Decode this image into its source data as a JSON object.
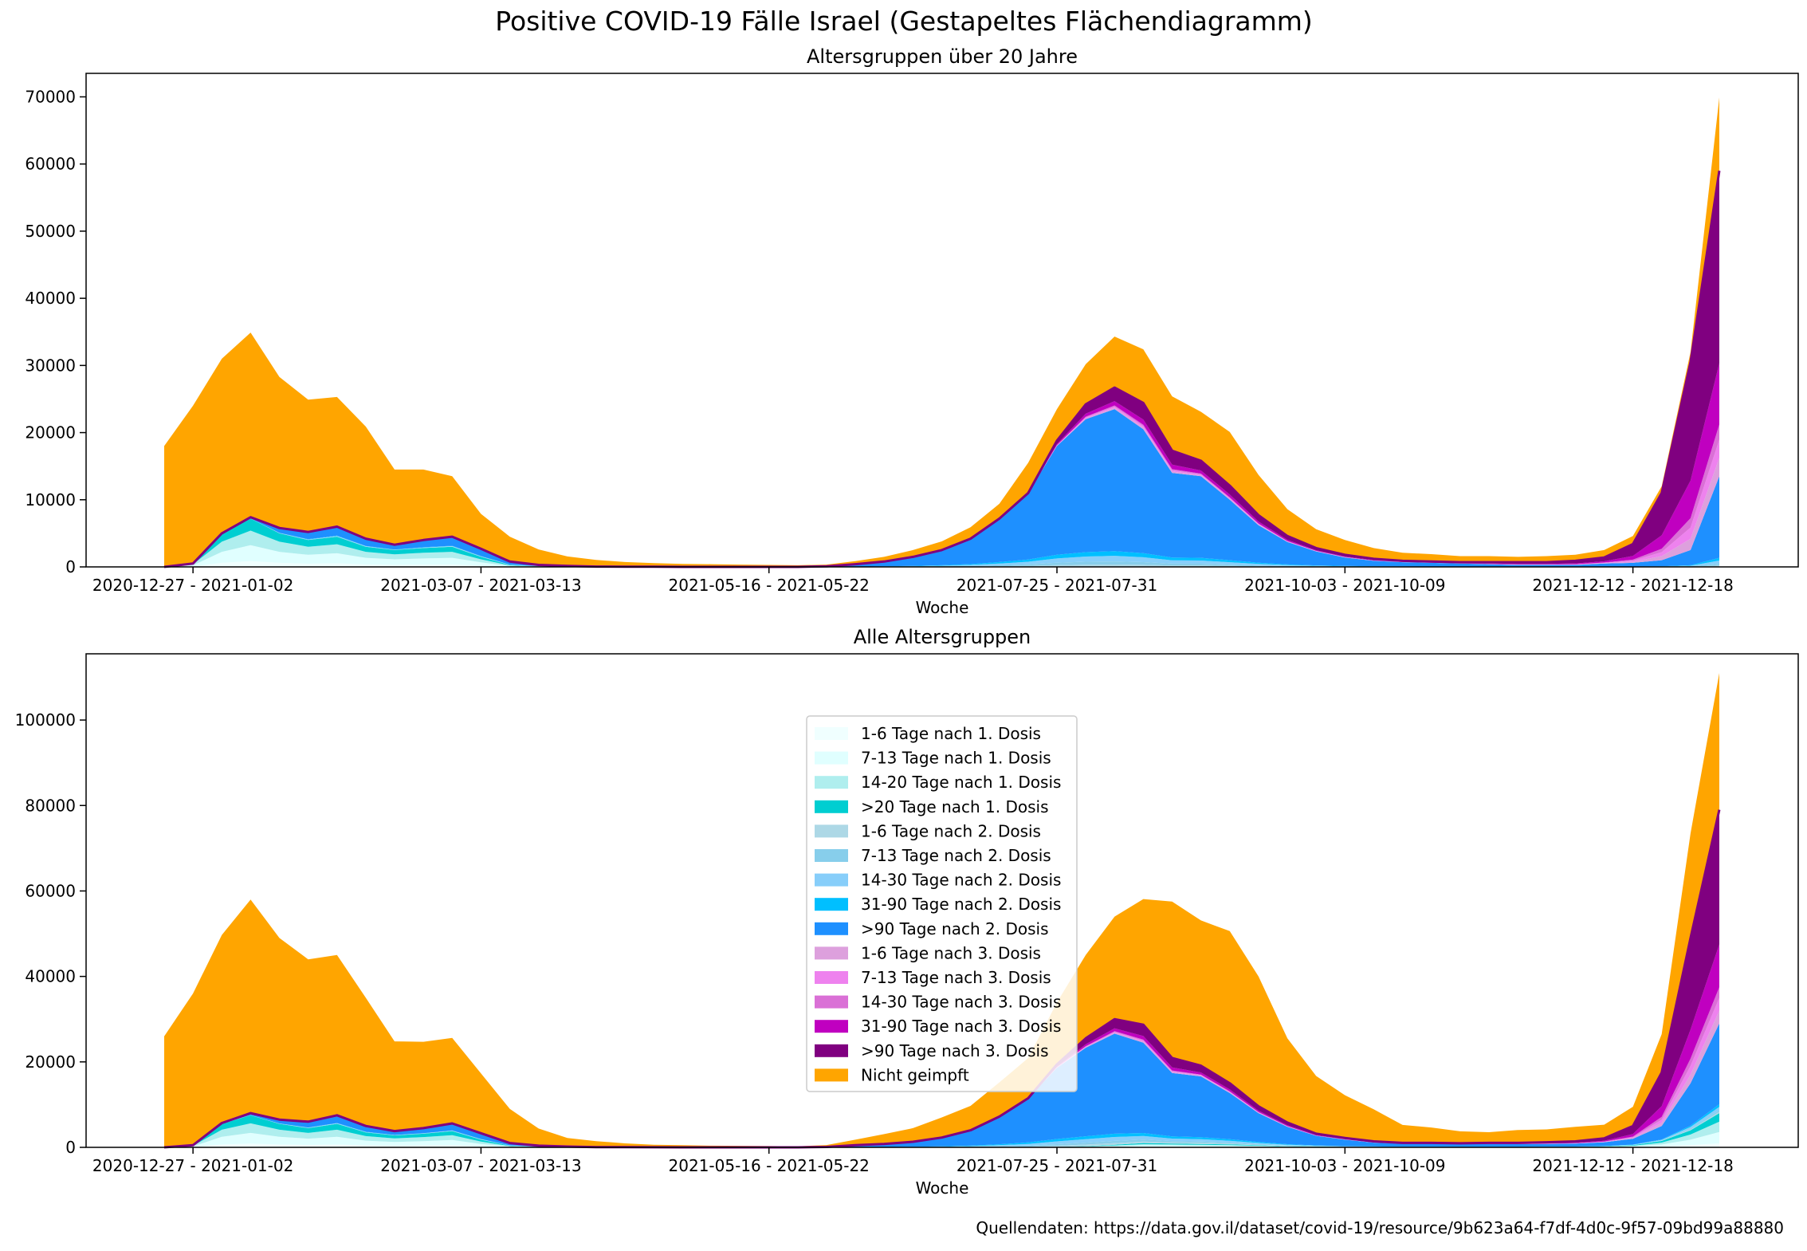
{
  "figure": {
    "title": "Positive COVID-19 Fälle Israel (Gestapeltes Flächendiagramm)",
    "source": "Quellendaten: https://data.gov.il/dataset/covid-19/resource/9b623a64-f7df-4d0c-9f57-09bd99a88880",
    "series_names": [
      "1-6 Tage nach 1. Dosis",
      "7-13 Tage nach 1. Dosis",
      "14-20 Tage nach 1. Dosis",
      ">20 Tage nach 1. Dosis",
      "1-6 Tage nach 2. Dosis",
      "7-13 Tage nach 2. Dosis",
      "14-30 Tage nach 2. Dosis",
      "31-90 Tage nach 2. Dosis",
      ">90 Tage nach 2. Dosis",
      "1-6 Tage nach 3. Dosis",
      "7-13 Tage nach 3. Dosis",
      "14-30 Tage nach 3. Dosis",
      "31-90 Tage nach 3. Dosis",
      ">90 Tage nach 3. Dosis",
      "Nicht geimpft"
    ],
    "series_colors": [
      "#f0ffff",
      "#e0ffff",
      "#afeeee",
      "#00ced1",
      "#add8e6",
      "#87ceeb",
      "#87cefa",
      "#00bfff",
      "#1e90ff",
      "#dda0dd",
      "#ee82ee",
      "#da70d6",
      "#c000c0",
      "#800080",
      "#ffa500"
    ]
  },
  "chart_data": [
    {
      "type": "area",
      "title": "Altersgruppen über 20 Jahre",
      "xlabel": "Woche",
      "ylabel": "",
      "ylim": [
        0,
        73500
      ],
      "yticks": [
        0,
        10000,
        20000,
        30000,
        40000,
        50000,
        60000,
        70000
      ],
      "x_tick_labels": [
        {
          "index": 1,
          "label": "2020-12-27 - 2021-01-02"
        },
        {
          "index": 11,
          "label": "2021-03-07 - 2021-03-13"
        },
        {
          "index": 21,
          "label": "2021-05-16 - 2021-05-22"
        },
        {
          "index": 31,
          "label": "2021-07-25 - 2021-07-31"
        },
        {
          "index": 41,
          "label": "2021-10-03 - 2021-10-09"
        },
        {
          "index": 51,
          "label": "2021-12-12 - 2021-12-18"
        }
      ],
      "n_weeks": 55,
      "groups": {
        "first_dose": [
          0,
          500,
          5000,
          7200,
          5000,
          4000,
          4500,
          3000,
          2500,
          2800,
          3000,
          1500,
          300,
          100,
          50,
          0,
          0,
          0,
          0,
          0,
          0,
          0,
          0,
          0,
          0,
          0,
          0,
          0,
          0,
          0,
          0,
          0,
          0,
          0,
          0,
          0,
          0,
          0,
          0,
          0,
          0,
          0,
          0,
          0,
          0,
          0,
          0,
          0,
          0,
          0,
          0,
          0,
          0,
          0,
          0
        ],
        "second_dose": [
          0,
          0,
          0,
          200,
          800,
          1200,
          1500,
          1200,
          800,
          1200,
          1500,
          1200,
          500,
          200,
          100,
          50,
          30,
          20,
          0,
          0,
          0,
          0,
          0,
          100,
          400,
          800,
          1500,
          2500,
          4200,
          7200,
          11000,
          18000,
          22000,
          23500,
          20500,
          14000,
          13500,
          10000,
          6200,
          3700,
          2300,
          1400,
          900,
          700,
          600,
          500,
          400,
          300,
          300,
          300,
          500,
          600,
          1000,
          2500,
          13500
        ],
        "third_dose": [
          0,
          0,
          0,
          0,
          0,
          0,
          0,
          0,
          0,
          0,
          0,
          0,
          0,
          0,
          0,
          0,
          0,
          0,
          0,
          0,
          0,
          0,
          0,
          0,
          0,
          0,
          0,
          0,
          0,
          0,
          0,
          800,
          2200,
          3200,
          3900,
          3300,
          2300,
          2100,
          1500,
          900,
          500,
          400,
          300,
          200,
          200,
          200,
          300,
          400,
          400,
          600,
          900,
          2800,
          10000,
          28000,
          45500
        ],
        "unvaccinated": [
          18000,
          23500,
          26000,
          27500,
          22500,
          19700,
          19300,
          16700,
          11200,
          10500,
          9000,
          5200,
          3700,
          2300,
          1400,
          1000,
          700,
          550,
          450,
          400,
          350,
          300,
          250,
          250,
          450,
          700,
          1000,
          1300,
          1700,
          2200,
          4500,
          4700,
          6000,
          7600,
          8000,
          8100,
          7300,
          8000,
          6000,
          4000,
          2800,
          2200,
          1600,
          1200,
          1100,
          900,
          900,
          800,
          900,
          900,
          1100,
          1200,
          1000,
          1500,
          10900
        ]
      }
    },
    {
      "type": "area",
      "title": "Alle Altersgruppen",
      "xlabel": "Woche",
      "ylabel": "",
      "ylim": [
        0,
        115500
      ],
      "yticks": [
        0,
        20000,
        40000,
        60000,
        80000,
        100000
      ],
      "x_tick_labels": [
        {
          "index": 1,
          "label": "2020-12-27 - 2021-01-02"
        },
        {
          "index": 11,
          "label": "2021-03-07 - 2021-03-13"
        },
        {
          "index": 21,
          "label": "2021-05-16 - 2021-05-22"
        },
        {
          "index": 31,
          "label": "2021-07-25 - 2021-07-31"
        },
        {
          "index": 41,
          "label": "2021-10-03 - 2021-10-09"
        },
        {
          "index": 51,
          "label": "2021-12-12 - 2021-12-18"
        }
      ],
      "n_weeks": 55,
      "groups": {
        "first_dose": [
          0,
          500,
          5500,
          7500,
          5500,
          4500,
          5500,
          3500,
          2800,
          3200,
          3800,
          1800,
          400,
          150,
          60,
          0,
          0,
          0,
          0,
          0,
          0,
          0,
          0,
          0,
          0,
          0,
          0,
          0,
          0,
          0,
          0,
          100,
          300,
          600,
          1000,
          900,
          800,
          700,
          500,
          300,
          200,
          100,
          100,
          50,
          50,
          50,
          50,
          50,
          100,
          100,
          200,
          500,
          1500,
          4000,
          8000
        ],
        "second_dose": [
          0,
          0,
          200,
          500,
          1000,
          1500,
          2000,
          1500,
          1000,
          1300,
          1800,
          1500,
          600,
          250,
          120,
          60,
          40,
          20,
          0,
          0,
          0,
          0,
          0,
          100,
          500,
          800,
          1300,
          2300,
          4000,
          7200,
          11500,
          18500,
          23000,
          26000,
          23500,
          16500,
          15800,
          12000,
          7500,
          4500,
          2500,
          1700,
          1000,
          800,
          800,
          700,
          700,
          700,
          700,
          800,
          1000,
          1500,
          3500,
          11000,
          21000
        ],
        "third_dose": [
          0,
          0,
          0,
          0,
          0,
          0,
          0,
          0,
          0,
          0,
          0,
          0,
          0,
          0,
          0,
          0,
          0,
          0,
          0,
          0,
          0,
          0,
          0,
          0,
          0,
          0,
          0,
          0,
          0,
          0,
          0,
          800,
          2200,
          3400,
          4200,
          3500,
          2500,
          2300,
          1600,
          1000,
          500,
          400,
          300,
          200,
          200,
          200,
          300,
          300,
          400,
          500,
          900,
          3000,
          12500,
          34000,
          50000
        ],
        "unvaccinated": [
          26000,
          35500,
          44000,
          50000,
          42500,
          38000,
          37500,
          30000,
          21000,
          20200,
          20000,
          14000,
          8000,
          4000,
          2000,
          1400,
          900,
          600,
          500,
          400,
          350,
          300,
          250,
          450,
          1300,
          2300,
          3200,
          4700,
          5700,
          8000,
          9400,
          14500,
          19500,
          24000,
          29400,
          36600,
          34000,
          35600,
          30400,
          19700,
          13500,
          10000,
          7500,
          4200,
          3600,
          2800,
          2500,
          3000,
          3000,
          3400,
          3200,
          4500,
          9000,
          24500,
          32000
        ]
      }
    }
  ]
}
